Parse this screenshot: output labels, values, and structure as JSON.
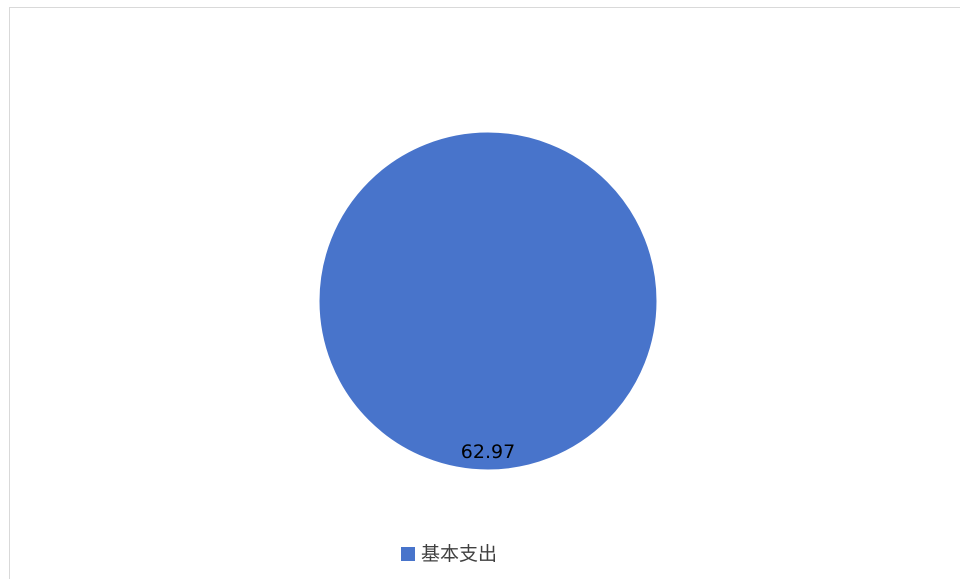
{
  "chart_data": {
    "type": "pie",
    "slices": [
      {
        "label": "基本支出",
        "value": 62.97,
        "color": "#4874cb"
      }
    ],
    "data_labels": [
      "62.97"
    ],
    "legend": {
      "position": "bottom",
      "entries": [
        "基本支出"
      ]
    }
  }
}
